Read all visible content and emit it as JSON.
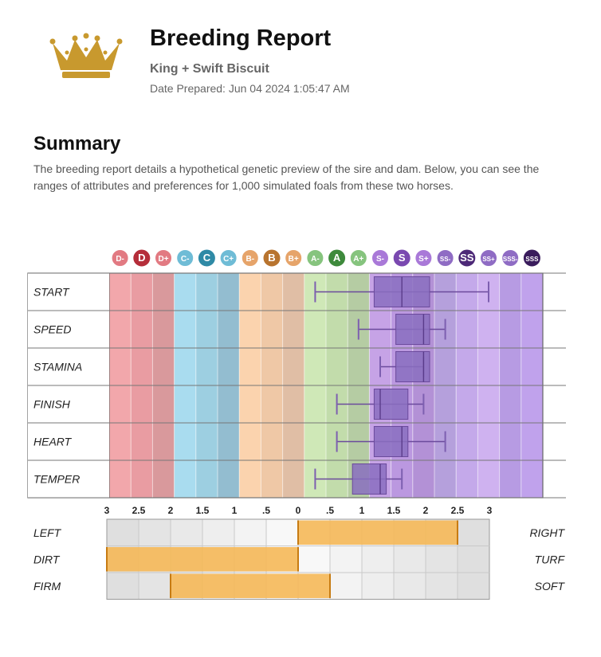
{
  "header": {
    "title": "Breeding Report",
    "subtitle": "King + Swift Biscuit",
    "date": "Date Prepared: Jun 04 2024 1:05:47 AM"
  },
  "summary": {
    "heading": "Summary",
    "text": "The breeding report details a hypothetical genetic preview of the sire and dam. Below, you can see the ranges of attributes and preferences for 1,000 simulated foals from these two horses."
  },
  "colors": {
    "crown": "#c8992e",
    "pref_bar": "#f5b858",
    "box": "#8a6fc0",
    "D": "#c0313a",
    "C": "#2e7b93",
    "B": "#b36b2b",
    "A": "#2f7a33",
    "S": "#6a3c99",
    "SS": "#3e1f61"
  },
  "chart_data": [
    {
      "type": "boxplot",
      "grades": [
        "D-",
        "D",
        "D+",
        "C-",
        "C",
        "C+",
        "B-",
        "B",
        "B+",
        "A-",
        "A",
        "A+",
        "S-",
        "S",
        "S+",
        "SS-",
        "SS",
        "SS+",
        "SSS-",
        "SSS"
      ],
      "series": [
        {
          "name": "START",
          "whisker_low": "A-",
          "q1": "S-",
          "median": "S",
          "q3": "S+",
          "whisker_high": "SS+"
        },
        {
          "name": "SPEED",
          "whisker_low": "A+",
          "q1": "S",
          "median": "S+",
          "q3": "S+",
          "whisker_high": "SS-"
        },
        {
          "name": "STAMINA",
          "whisker_low": "S-",
          "q1": "S",
          "median": "S+",
          "q3": "S+",
          "whisker_high": "S+"
        },
        {
          "name": "FINISH",
          "whisker_low": "A",
          "q1": "S-",
          "median": "S-",
          "q3": "S",
          "whisker_high": "S+"
        },
        {
          "name": "HEART",
          "whisker_low": "A",
          "q1": "S-",
          "median": "S",
          "q3": "S",
          "whisker_high": "SS-"
        },
        {
          "name": "TEMPER",
          "whisker_low": "A-",
          "q1": "A+",
          "median": "S-",
          "q3": "S-",
          "whisker_high": "S"
        }
      ]
    },
    {
      "type": "bar",
      "ticks": [
        "3",
        "2.5",
        "2",
        "1.5",
        "1",
        ".5",
        "0",
        ".5",
        "1",
        "1.5",
        "2",
        "2.5",
        "3"
      ],
      "xlim": [
        -3,
        3
      ],
      "rows": [
        {
          "left": "LEFT",
          "right": "RIGHT",
          "from": 0,
          "to": 2.5
        },
        {
          "left": "DIRT",
          "right": "TURF",
          "from": -3,
          "to": 0
        },
        {
          "left": "FIRM",
          "right": "SOFT",
          "from": -2,
          "to": 0.5
        }
      ]
    }
  ]
}
